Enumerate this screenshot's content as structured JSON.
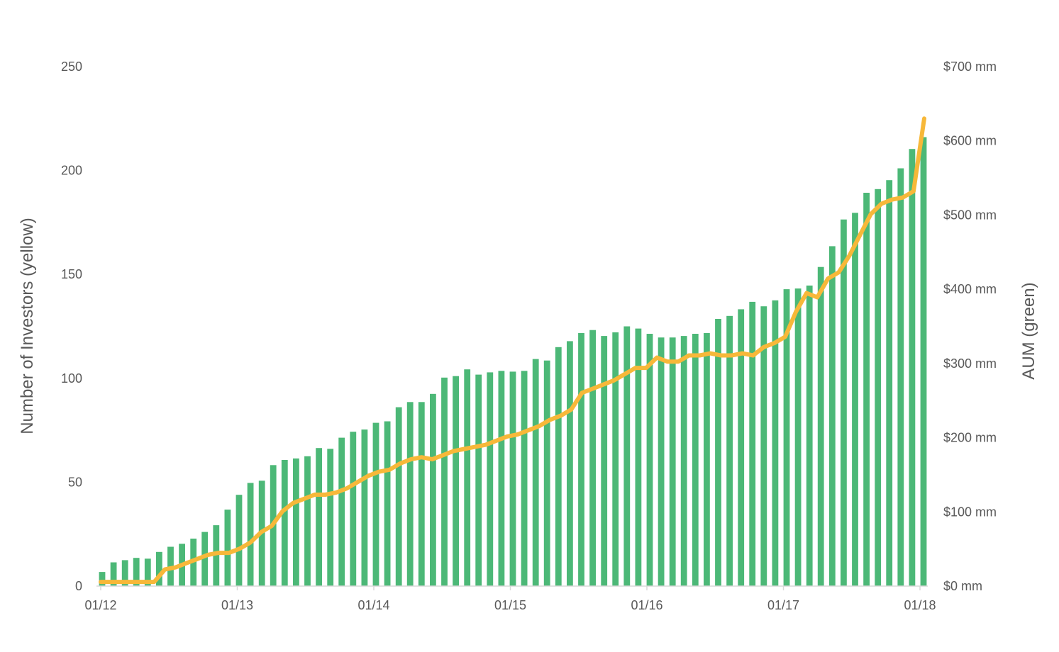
{
  "chart_data": {
    "type": "bar",
    "title": "",
    "x_tick_labels": [
      "01/12",
      "01/13",
      "01/14",
      "01/15",
      "01/16",
      "01/17",
      "01/18"
    ],
    "y_left": {
      "label": "Number of Investors (yellow)",
      "range": [
        0,
        250
      ],
      "ticks": [
        0,
        50,
        100,
        150,
        200,
        250
      ],
      "tick_labels": [
        "0",
        "50",
        "100",
        "150",
        "200",
        "250"
      ]
    },
    "y_right": {
      "label": "AUM (green)",
      "range": [
        0,
        700
      ],
      "unit": "mm",
      "ticks": [
        0,
        100,
        200,
        300,
        400,
        500,
        600,
        700
      ],
      "tick_labels": [
        "$0 mm",
        "$100 mm",
        "$200 mm",
        "$300 mm",
        "$400 mm",
        "$500 mm",
        "$600 mm",
        "$700 mm"
      ]
    },
    "grid": false,
    "legend": "none",
    "series": [
      {
        "type": "bar",
        "axis": "right",
        "color": "#4CB877",
        "values": [
          19,
          32,
          35,
          38,
          37,
          46,
          53,
          57,
          64,
          73,
          82,
          103,
          123,
          139,
          142,
          163,
          170,
          172,
          175,
          186,
          185,
          200,
          208,
          211,
          220,
          222,
          241,
          248,
          248,
          259,
          281,
          283,
          292,
          285,
          288,
          290,
          289,
          290,
          306,
          304,
          322,
          330,
          341,
          345,
          337,
          342,
          350,
          347,
          340,
          335,
          335,
          337,
          340,
          341,
          360,
          364,
          373,
          383,
          377,
          385,
          400,
          401,
          405,
          430,
          458,
          494,
          503,
          530,
          535,
          547,
          563,
          589,
          605
        ]
      },
      {
        "type": "line",
        "axis": "left",
        "color": "#F7B839",
        "values": [
          2,
          2,
          2,
          2,
          2,
          2,
          8,
          9,
          11,
          13,
          15,
          16,
          16,
          18,
          21,
          26,
          29,
          36,
          40,
          42,
          44,
          44,
          45,
          47,
          50,
          53,
          55,
          56,
          59,
          61,
          62,
          61,
          63,
          65,
          66,
          67,
          68,
          70,
          72,
          73,
          75,
          77,
          80,
          82,
          85,
          93,
          95,
          97,
          99,
          102,
          105,
          105,
          110,
          108,
          108,
          111,
          111,
          112,
          111,
          111,
          112,
          111,
          115,
          117,
          120,
          132,
          141,
          139,
          148,
          151,
          159,
          169,
          179,
          184,
          186,
          187,
          190,
          225
        ]
      }
    ]
  }
}
